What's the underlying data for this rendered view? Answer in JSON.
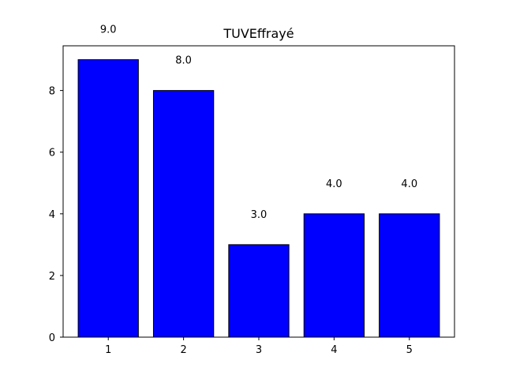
{
  "chart_data": {
    "type": "bar",
    "title": "TUVEffrayé",
    "xlabel": "",
    "ylabel": "",
    "categories": [
      "1",
      "2",
      "3",
      "4",
      "5"
    ],
    "values": [
      9.0,
      8.0,
      3.0,
      4.0,
      4.0
    ],
    "data_labels": [
      "9.0",
      "8.0",
      "3.0",
      "4.0",
      "4.0"
    ],
    "y_ticks": [
      0,
      2,
      4,
      6,
      8
    ],
    "y_tick_labels": [
      "0",
      "2",
      "4",
      "6",
      "8"
    ],
    "xlim": [
      0.4,
      5.6
    ],
    "ylim": [
      0,
      9.45
    ],
    "grid": false,
    "colors": {
      "bar_fill": "#0000ff",
      "bar_edge": "#000000",
      "axis": "#000000"
    }
  }
}
